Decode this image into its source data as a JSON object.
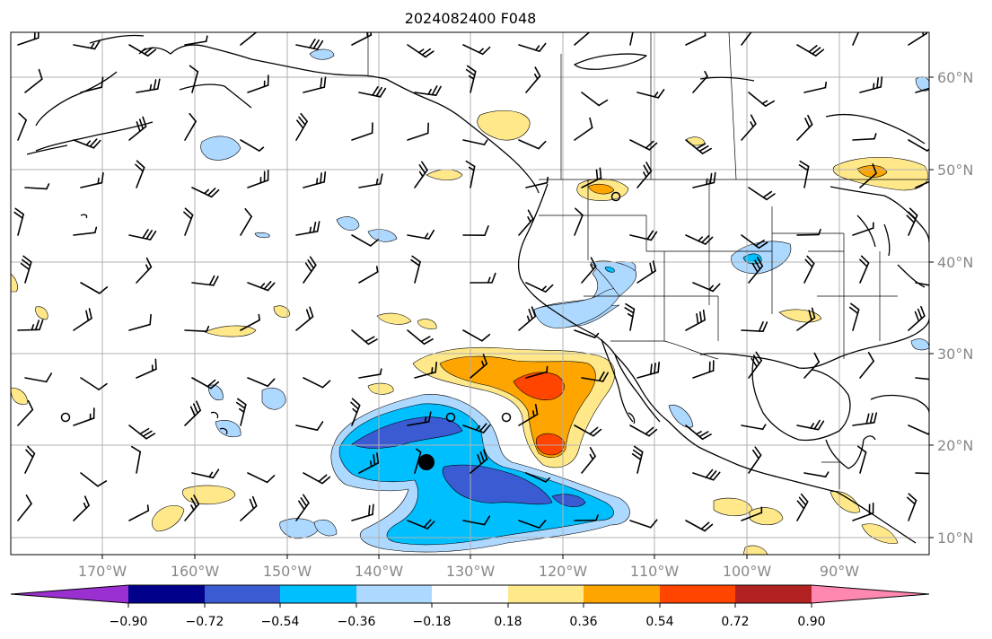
{
  "title": "2024082400 F048",
  "lat_labels": [
    "60°N",
    "50°N",
    "40°N",
    "30°N",
    "20°N",
    "10°N"
  ],
  "lon_labels": [
    "170°W",
    "160°W",
    "150°W",
    "140°W",
    "130°W",
    "120°W",
    "110°W",
    "100°W",
    "90°W"
  ],
  "colorbar": {
    "tick_labels": [
      "−0.90",
      "−0.72",
      "−0.54",
      "−0.36",
      "−0.18",
      "0.18",
      "0.36",
      "0.54",
      "0.72",
      "0.90"
    ],
    "colors": [
      "#9b30d0",
      "#00008b",
      "#3a5bd1",
      "#00bfff",
      "#add8ff",
      "#ffffff",
      "#ffe88a",
      "#ffa500",
      "#ff4500",
      "#b22222",
      "#ff88b0"
    ]
  },
  "colors": {
    "neg_light": "#add8ff",
    "neg_mid": "#00bfff",
    "neg_strong": "#3a5bd1",
    "pos_light": "#ffe88a",
    "pos_mid": "#ffa500",
    "pos_strong": "#ff4500"
  }
}
